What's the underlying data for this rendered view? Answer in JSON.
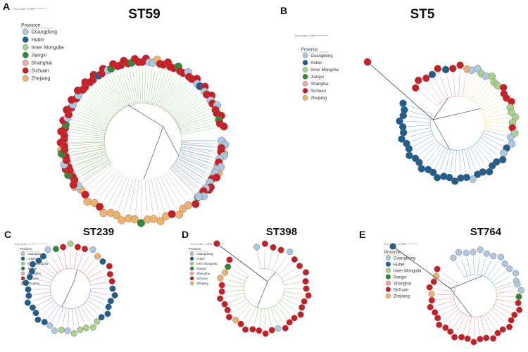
{
  "province_colors": {
    "Guangdong": "#a9c8e1",
    "Hubei": "#1d5f8f",
    "Inner Mongolia": "#a6d28a",
    "Jiangxi": "#2e8b35",
    "Shanghai": "#f0a7a7",
    "Sichuan": "#c81e24",
    "Zhejiang": "#efb26c"
  },
  "legend": {
    "title": "Province",
    "items": [
      "Guangdong",
      "Hubei",
      "Inner Mongolia",
      "Jiangxi",
      "Shanghai",
      "Sichuan",
      "Zhejiang"
    ]
  },
  "panels": [
    {
      "letter": "A",
      "title": "ST59",
      "scale_label": "Tree scale: 0.001",
      "has_legend": true,
      "clades": [
        {
          "color": "#c9a8a2",
          "start": 178,
          "end": 0,
          "sequence": "ZZZZSZZZZSZZSZZZZZZJZZZZSZZZSJZSZZZZZZZS"
        },
        {
          "color": "#6aaad6",
          "start": 0,
          "end": 45,
          "sequence": "GGSSGGSGGGSSGSGSGG"
        },
        {
          "color": "#8fcf7f",
          "start": -215,
          "end": -10,
          "sequence": "GSSSJSSGSSJSSSSSSSJSGSSSGSSGSSSSSSSHSSGJSSSSSJSSSSGGZSSSSSJSSGSSSGHSGSSGSGSSSJSS"
        }
      ]
    },
    {
      "letter": "B",
      "title": "ST5",
      "scale_label": "Tree scale: 0.01",
      "has_legend": true,
      "clades": [
        {
          "color": "#e8a0a0",
          "start": -140,
          "end": -80,
          "sequence": "SSSHSHSSZ"
        },
        {
          "color": "#e7e08c",
          "start": -75,
          "end": 10,
          "sequence": "GGIGIIISSSSIIIISI"
        },
        {
          "color": "#6aaad6",
          "start": 15,
          "end": 200,
          "sequence": "GGHGHHHHHHGHHHHHHHHHHHHHHHHHHHHH"
        }
      ]
    },
    {
      "letter": "C",
      "title": "ST239",
      "scale_label": "Tree scale: 0.1",
      "has_legend": true,
      "clades": [
        {
          "color": "#d98080",
          "start": -130,
          "end": -10,
          "sequence": "ZGJSISSGZHSSS"
        },
        {
          "color": "#a58ed8",
          "start": 0,
          "end": 230,
          "sequence": "HHHHHHIIIIIGIGGHHHHHHHHHHHHH"
        }
      ]
    },
    {
      "letter": "D",
      "title": "ST398",
      "scale_label": "Tree scale: 0.001",
      "has_legend": true,
      "clades": [
        {
          "color": "#e09a9a",
          "start": -100,
          "end": -10,
          "sequence": "GSSSGSSSS"
        },
        {
          "color": "#8cc47a",
          "start": 0,
          "end": 220,
          "sequence": "SSSSSSSSGSSSSSSZSSSSSSZZJS"
        }
      ]
    },
    {
      "letter": "E",
      "title": "ST764",
      "scale_label": "Tree scale: 0.001",
      "has_legend": true,
      "clades": [
        {
          "color": "#6aaad6",
          "start": -120,
          "end": -20,
          "sequence": "GGGGGGGGGGGG"
        },
        {
          "color": "#e09090",
          "start": -15,
          "end": 215,
          "sequence": "GGJSSSSSSSSSSSSSSSSSSSSSZSSZS"
        }
      ]
    }
  ]
}
